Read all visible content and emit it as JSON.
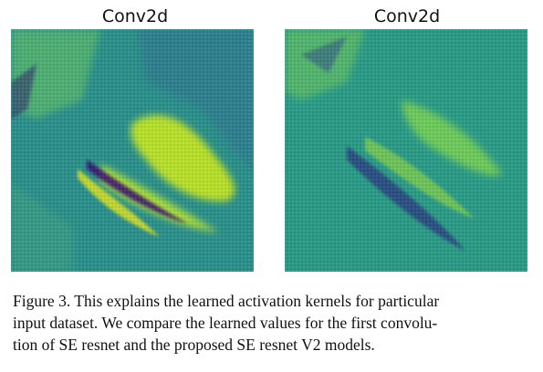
{
  "figure": {
    "panels": [
      {
        "title": "Conv2d"
      },
      {
        "title": "Conv2d"
      }
    ],
    "caption": {
      "lines": [
        "Figure 3. This explains the learned activation kernels for particular",
        "input dataset. We compare the learned values for the first convolu-",
        "tion of SE resnet and the proposed SE resnet V2 models."
      ]
    }
  }
}
